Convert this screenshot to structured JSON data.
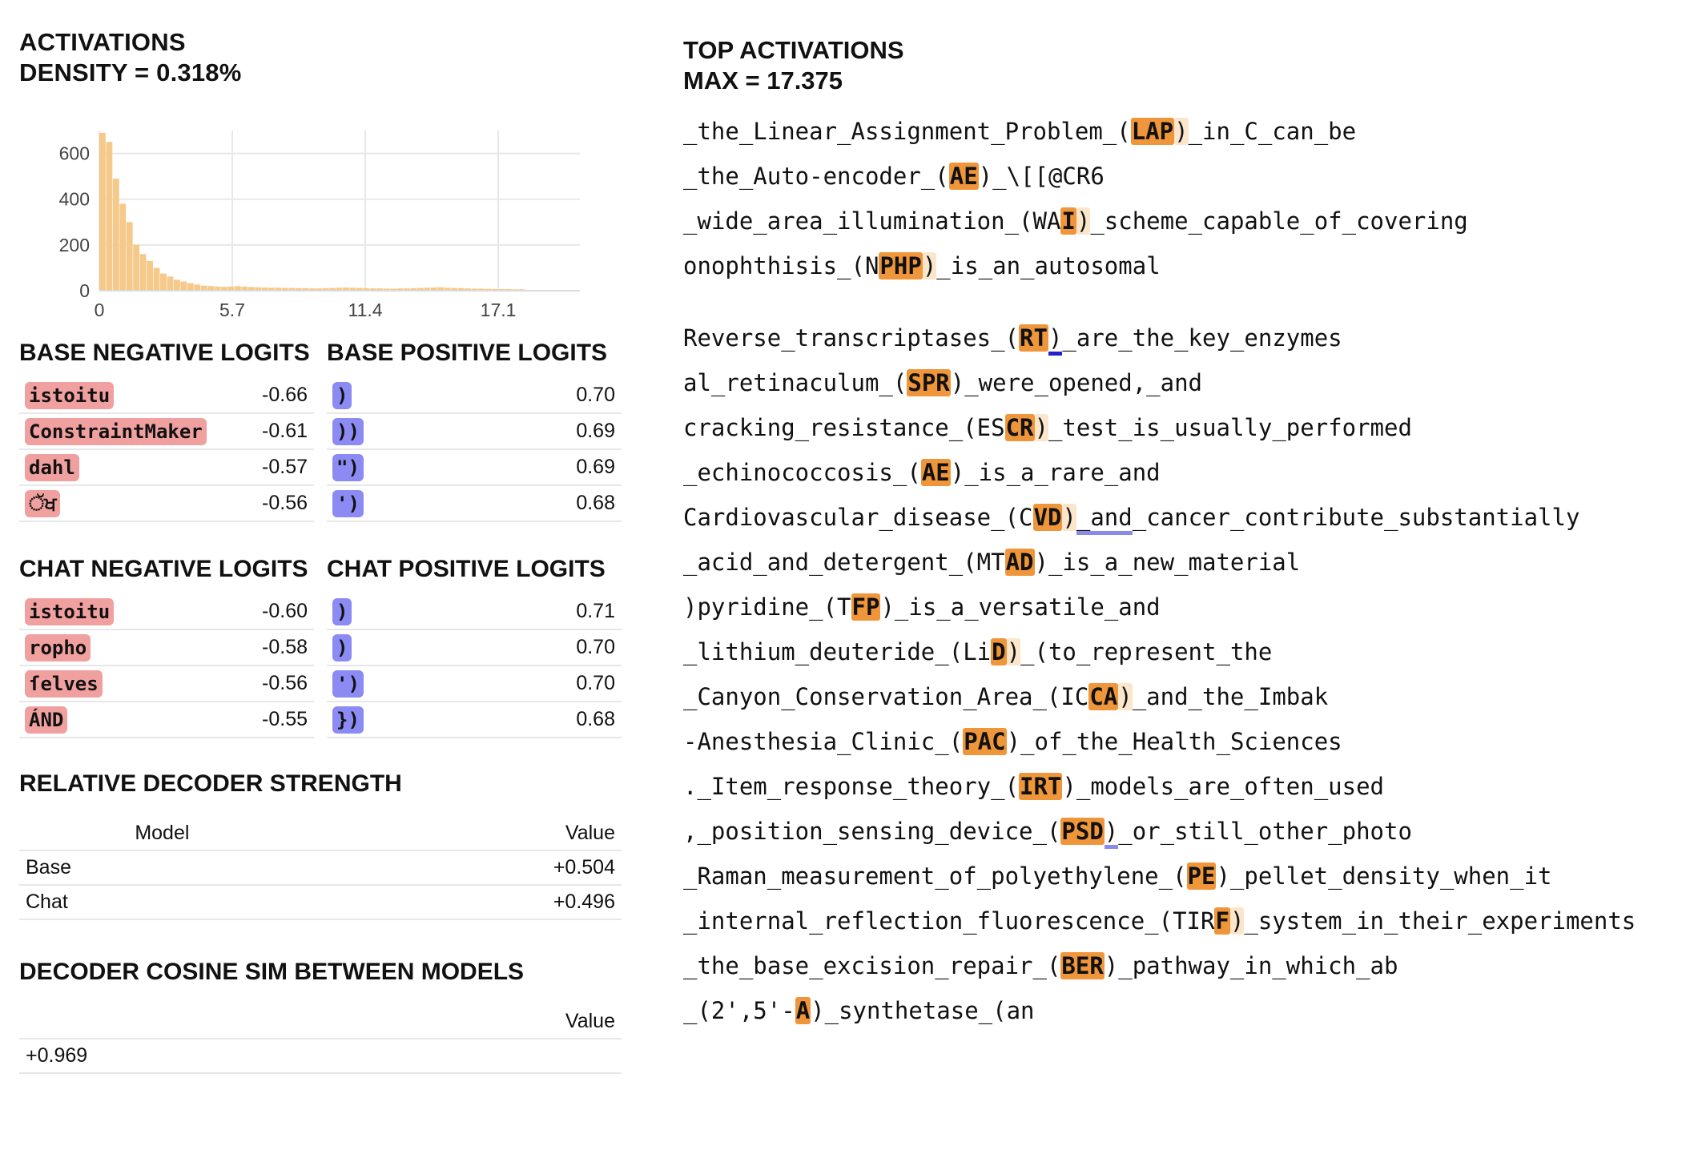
{
  "activations": {
    "title": "ACTIVATIONS",
    "density_label": "DENSITY = 0.318%"
  },
  "chart_data": {
    "type": "bar",
    "title": "",
    "xlabel": "",
    "ylabel": "",
    "x_ticks": [
      "0",
      "5.7",
      "11.4",
      "17.1"
    ],
    "y_ticks": [
      "0",
      "200",
      "400",
      "600"
    ],
    "xlim": [
      0,
      20.6
    ],
    "ylim": [
      0,
      700
    ],
    "bin_width": 0.29,
    "values": [
      690,
      650,
      490,
      380,
      300,
      200,
      160,
      130,
      100,
      75,
      62,
      48,
      40,
      33,
      27,
      22,
      20,
      18,
      17,
      18,
      20,
      18,
      16,
      15,
      14,
      13,
      13,
      12,
      12,
      11,
      11,
      10,
      10,
      11,
      12,
      13,
      14,
      13,
      12,
      11,
      10,
      10,
      9,
      9,
      10,
      10,
      11,
      12,
      13,
      14,
      15,
      13,
      12,
      11,
      10,
      9,
      9,
      8,
      7,
      7,
      7,
      6,
      6
    ],
    "color": "#f5c98a",
    "grid": true
  },
  "base_negative": {
    "title": "BASE NEGATIVE LOGITS",
    "items": [
      {
        "token": "istoitu",
        "value": "-0.66"
      },
      {
        "token": "ConstraintMaker",
        "value": "-0.61"
      },
      {
        "token": "dahl",
        "value": "-0.57"
      },
      {
        "token": "ੱਖ",
        "value": "-0.56"
      }
    ]
  },
  "base_positive": {
    "title": "BASE POSITIVE LOGITS",
    "items": [
      {
        "token": ")",
        "value": "0.70"
      },
      {
        "token": "))",
        "value": "0.69"
      },
      {
        "token": "\")",
        "value": "0.69"
      },
      {
        "token": "')",
        "value": "0.68"
      }
    ]
  },
  "chat_negative": {
    "title": "CHAT NEGATIVE LOGITS",
    "items": [
      {
        "token": "istoitu",
        "value": "-0.60"
      },
      {
        "token": "ropho",
        "value": "-0.58"
      },
      {
        "token": "ſelves",
        "value": "-0.56"
      },
      {
        "token": "ÁND",
        "value": "-0.55"
      }
    ]
  },
  "chat_positive": {
    "title": "CHAT POSITIVE LOGITS",
    "items": [
      {
        "token": ")",
        "value": "0.71"
      },
      {
        "token": ")",
        "value": "0.70"
      },
      {
        "token": "')",
        "value": "0.70"
      },
      {
        "token": "})",
        "value": "0.68"
      }
    ]
  },
  "relative_decoder": {
    "title": "RELATIVE DECODER STRENGTH",
    "col_model": "Model",
    "col_value": "Value",
    "rows": [
      {
        "model": "Base",
        "value": "+0.504"
      },
      {
        "model": "Chat",
        "value": "+0.496"
      }
    ]
  },
  "cosine_sim": {
    "title": "DECODER COSINE SIM BETWEEN MODELS",
    "col_value": "Value",
    "value": "+0.969"
  },
  "top_activations": {
    "title": "TOP ACTIVATIONS",
    "max_label": "MAX = 17.375",
    "group1": [
      [
        [
          "_the_Linear_Assignment_Problem_(",
          ""
        ],
        [
          "LAP",
          "h"
        ],
        [
          ")",
          "l"
        ],
        [
          "_in_C_can_be",
          ""
        ]
      ],
      [
        [
          "_the_Auto-encoder_(",
          ""
        ],
        [
          "AE",
          "h"
        ],
        [
          ")_\\[[@CR6",
          ""
        ]
      ],
      [
        [
          "_wide_area_illumination_(WA",
          ""
        ],
        [
          "I",
          "h"
        ],
        [
          ")",
          "l"
        ],
        [
          "_scheme_capable_of_covering",
          ""
        ]
      ],
      [
        [
          "onophthisis_(N",
          ""
        ],
        [
          "PHP",
          "h"
        ],
        [
          ")",
          "l"
        ],
        [
          "_is_an_autosomal",
          ""
        ]
      ]
    ],
    "group2": [
      [
        [
          "Reverse_transcriptases_(",
          ""
        ],
        [
          "RT",
          "h"
        ],
        [
          ")",
          "u"
        ],
        [
          "_are_the_key_enzymes",
          ""
        ]
      ],
      [
        [
          "al_retinaculum_(",
          ""
        ],
        [
          "SPR",
          "h"
        ],
        [
          ")_were_opened,_and",
          ""
        ]
      ],
      [
        [
          "cracking_resistance_(ES",
          ""
        ],
        [
          "CR",
          "h"
        ],
        [
          ")",
          "l"
        ],
        [
          "_test_is_usually_performed",
          ""
        ]
      ],
      [
        [
          "_echinococcosis_(",
          ""
        ],
        [
          "AE",
          "h"
        ],
        [
          ")_is_a_rare_and",
          ""
        ]
      ],
      [
        [
          "Cardiovascular_disease_(C",
          ""
        ],
        [
          "VD",
          "h"
        ],
        [
          ")",
          "l"
        ],
        [
          "_and",
          "u2"
        ],
        [
          "_cancer_contribute_substantially",
          ""
        ]
      ],
      [
        [
          "_acid_and_detergent_(MT",
          ""
        ],
        [
          "AD",
          "h"
        ],
        [
          ")_is_a_new_material",
          ""
        ]
      ],
      [
        [
          ")pyridine_(T",
          ""
        ],
        [
          "FP",
          "h"
        ],
        [
          ")_is_a_versatile_and",
          ""
        ]
      ],
      [
        [
          "_lithium_deuteride_(Li",
          ""
        ],
        [
          "D",
          "h"
        ],
        [
          ")",
          "l"
        ],
        [
          "_(to_represent_the",
          ""
        ]
      ],
      [
        [
          "_Canyon_Conservation_Area_(IC",
          ""
        ],
        [
          "CA",
          "h"
        ],
        [
          ")",
          "l"
        ],
        [
          "_and_the_Imbak",
          ""
        ]
      ],
      [
        [
          "-Anesthesia_Clinic_(",
          ""
        ],
        [
          "PAC",
          "h"
        ],
        [
          ")_of_the_Health_Sciences",
          ""
        ]
      ],
      [
        [
          "._Item_response_theory_(",
          ""
        ],
        [
          "IRT",
          "h"
        ],
        [
          ")_models_are_often_used",
          ""
        ]
      ],
      [
        [
          ",_position_sensing_device_(",
          ""
        ],
        [
          "PSD",
          "h"
        ],
        [
          ")",
          "u2"
        ],
        [
          "_or_still_other_photo",
          ""
        ]
      ],
      [
        [
          "_Raman_measurement_of_polyethylene_(",
          ""
        ],
        [
          "PE",
          "h"
        ],
        [
          ")_pellet_density_when_it",
          ""
        ]
      ],
      [
        [
          "_internal_reflection_fluorescence_(TIR",
          ""
        ],
        [
          "F",
          "h"
        ],
        [
          ")",
          "l"
        ],
        [
          "_system_in_their_experiments",
          ""
        ]
      ],
      [
        [
          "_the_base_excision_repair_(",
          ""
        ],
        [
          "BER",
          "h"
        ],
        [
          ")_pathway_in_which_ab",
          ""
        ]
      ],
      [
        [
          "_(2',5'-",
          ""
        ],
        [
          "A",
          "h"
        ],
        [
          ")_synthetase_(an",
          ""
        ]
      ]
    ]
  }
}
